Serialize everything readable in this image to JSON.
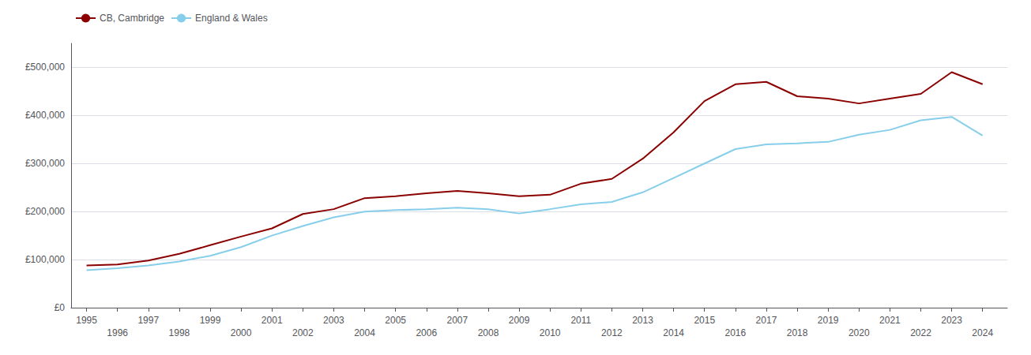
{
  "chart_data": {
    "type": "line",
    "x": [
      1995,
      1996,
      1997,
      1998,
      1999,
      2000,
      2001,
      2002,
      2003,
      2004,
      2005,
      2006,
      2007,
      2008,
      2009,
      2010,
      2011,
      2012,
      2013,
      2014,
      2015,
      2016,
      2017,
      2018,
      2019,
      2020,
      2021,
      2022,
      2023,
      2024
    ],
    "series": [
      {
        "name": "CB, Cambridge",
        "color": "#8B0000",
        "values": [
          88000,
          90000,
          98000,
          112000,
          130000,
          148000,
          165000,
          195000,
          205000,
          228000,
          232000,
          238000,
          243000,
          238000,
          232000,
          235000,
          258000,
          268000,
          310000,
          365000,
          430000,
          465000,
          470000,
          440000,
          435000,
          425000,
          435000,
          445000,
          490000,
          465000
        ]
      },
      {
        "name": "England & Wales",
        "color": "#87CEEB",
        "values": [
          78000,
          82000,
          88000,
          96000,
          108000,
          126000,
          150000,
          170000,
          188000,
          200000,
          203000,
          205000,
          208000,
          205000,
          196000,
          205000,
          215000,
          220000,
          240000,
          270000,
          300000,
          330000,
          340000,
          342000,
          345000,
          360000,
          370000,
          390000,
          397000,
          358000
        ]
      }
    ],
    "xlim": [
      1994.5,
      2024.8
    ],
    "xticks": [
      1995,
      1996,
      1997,
      1998,
      1999,
      2000,
      2001,
      2002,
      2003,
      2004,
      2005,
      2006,
      2007,
      2008,
      2009,
      2010,
      2011,
      2012,
      2013,
      2014,
      2015,
      2016,
      2017,
      2018,
      2019,
      2020,
      2021,
      2022,
      2023,
      2024
    ],
    "ylim": [
      0,
      550000
    ],
    "yticks": [
      {
        "value": 0,
        "label": "£0"
      },
      {
        "value": 100000,
        "label": "£100,000"
      },
      {
        "value": 200000,
        "label": "£200,000"
      },
      {
        "value": 300000,
        "label": "£300,000"
      },
      {
        "value": 400000,
        "label": "£400,000"
      },
      {
        "value": 500000,
        "label": "£500,000"
      }
    ],
    "grid": true,
    "legend": "upper left"
  }
}
